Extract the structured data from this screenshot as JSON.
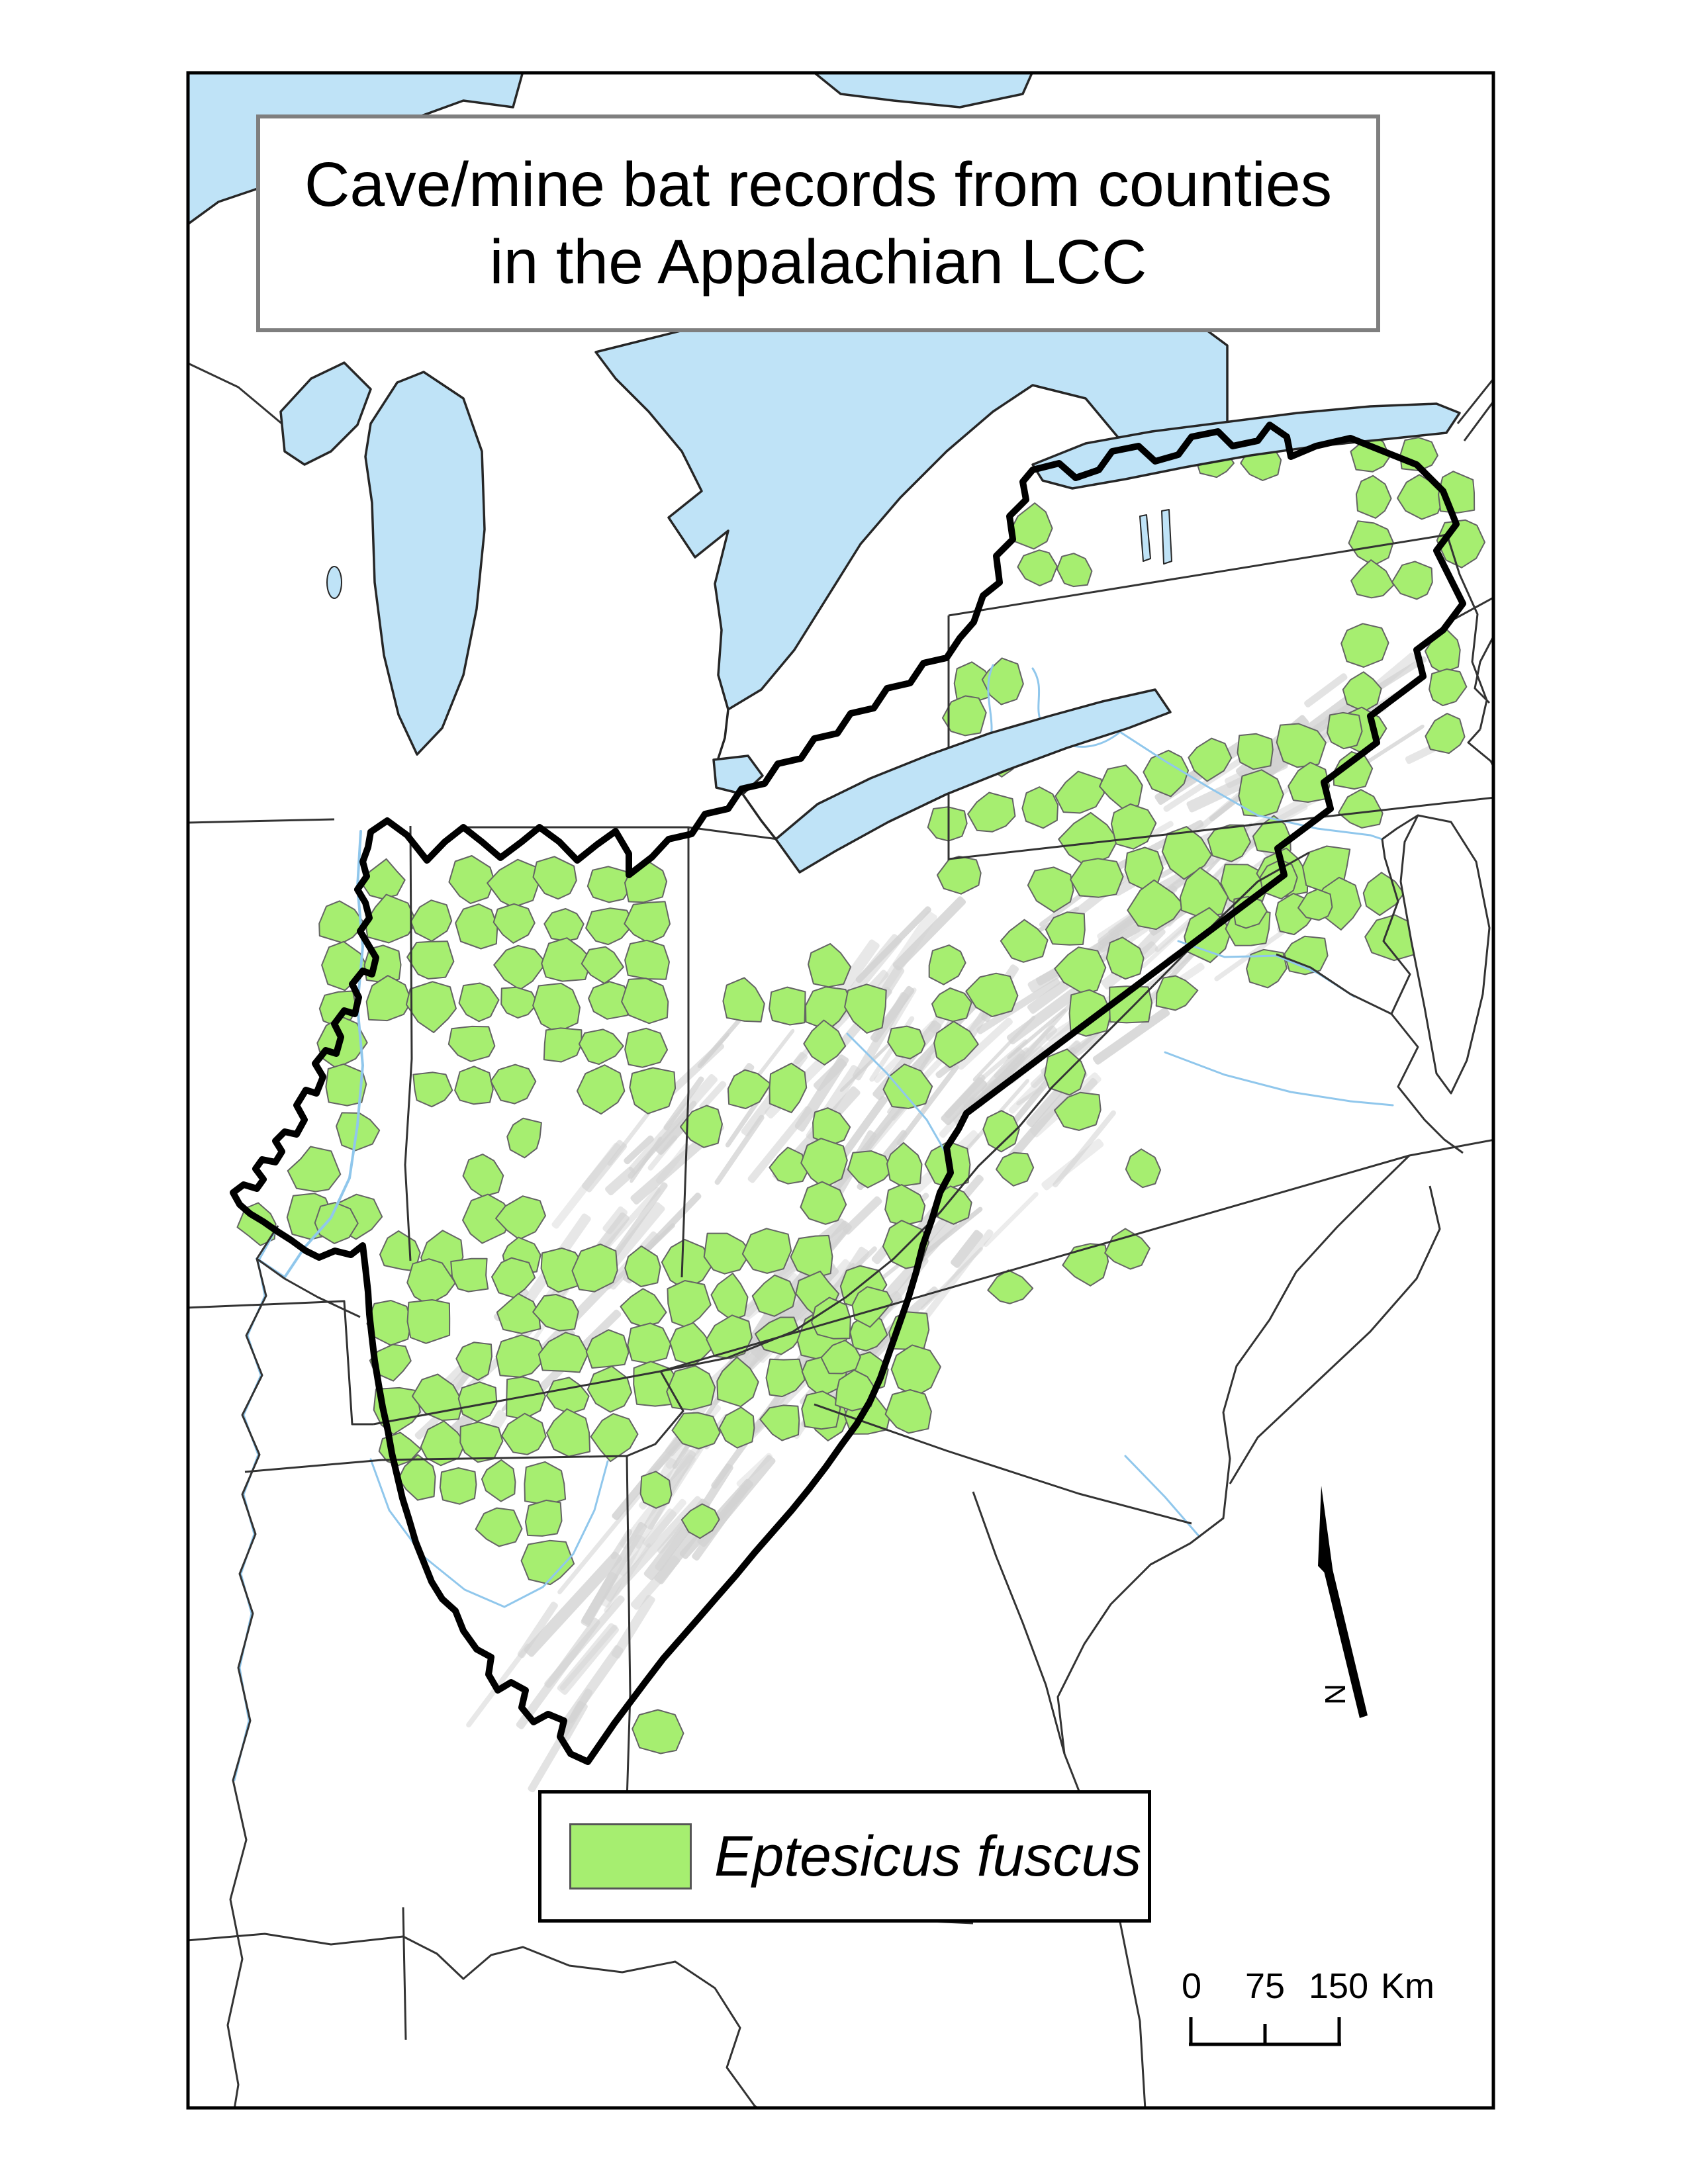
{
  "title": {
    "line1": "Cave/mine bat records from counties",
    "line2": "in the Appalachian LCC"
  },
  "legend": {
    "species_label": "Eptesicus fuscus"
  },
  "scale_bar": {
    "start_label": "0",
    "mid_label": "75",
    "end_label": "150",
    "unit_label": "Km"
  },
  "north_arrow": {
    "label": "N"
  },
  "map": {
    "region_name": "Appalachian LCC",
    "colors": {
      "county_fill": "#a6ee70",
      "county_border": "#646464",
      "lake_fill": "#bfe3f7",
      "lake_coast": "#262626",
      "river": "#90c7ec",
      "relief": "#d2d2d2",
      "state_line": "#333333",
      "boundary": "#000000",
      "frame": "#000000",
      "title_border": "#7f7f7f"
    }
  }
}
